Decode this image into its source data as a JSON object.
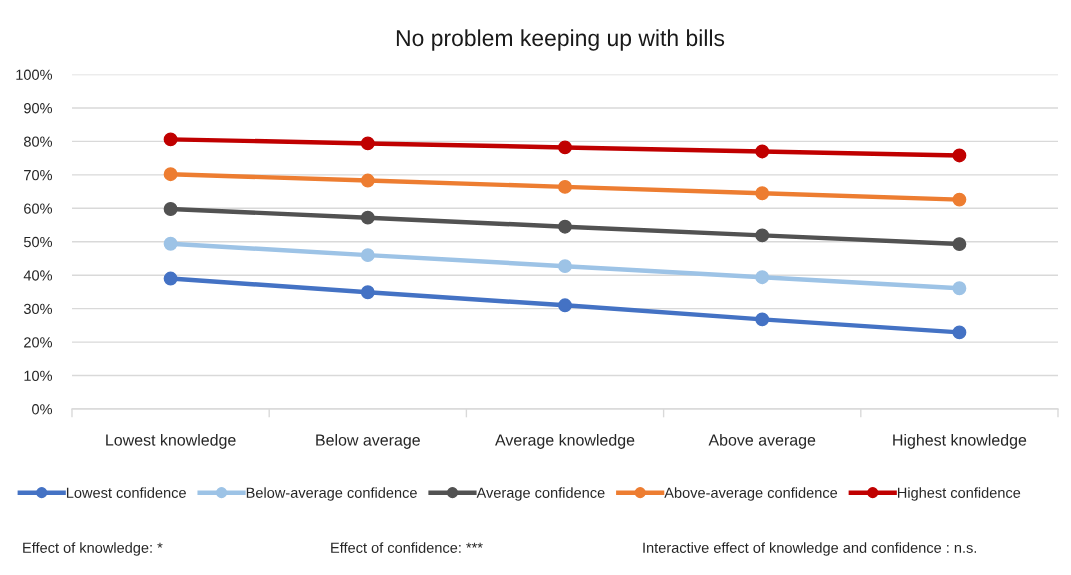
{
  "chart_data": {
    "type": "line",
    "title": "No problem keeping up with bills",
    "categories": [
      "Lowest knowledge",
      "Below average",
      "Average knowledge",
      "Above average",
      "Highest knowledge"
    ],
    "series": [
      {
        "name": "Lowest confidence",
        "color": "#4472c4",
        "values": [
          39.0,
          34.9,
          31.0,
          26.8,
          22.9
        ]
      },
      {
        "name": "Below-average confidence",
        "color": "#9dc3e6",
        "values": [
          49.4,
          46.0,
          42.7,
          39.4,
          36.1
        ]
      },
      {
        "name": "Average confidence",
        "color": "#525252",
        "values": [
          59.8,
          57.2,
          54.5,
          51.9,
          49.3
        ]
      },
      {
        "name": "Above-average confidence",
        "color": "#ed7d31",
        "values": [
          70.2,
          68.3,
          66.4,
          64.5,
          62.6
        ]
      },
      {
        "name": "Highest confidence",
        "color": "#c00000",
        "values": [
          80.6,
          79.4,
          78.2,
          77.0,
          75.8
        ]
      }
    ],
    "ylim": [
      0,
      100
    ],
    "yticks": [
      {
        "value": 0,
        "label": "0%"
      },
      {
        "value": 10,
        "label": "10%"
      },
      {
        "value": 20,
        "label": "20%"
      },
      {
        "value": 30,
        "label": "30%"
      },
      {
        "value": 40,
        "label": "40%"
      },
      {
        "value": 50,
        "label": "50%"
      },
      {
        "value": 60,
        "label": "60%"
      },
      {
        "value": 70,
        "label": "70%"
      },
      {
        "value": 80,
        "label": "80%"
      },
      {
        "value": 90,
        "label": "90%"
      },
      {
        "value": 100,
        "label": "100%"
      }
    ],
    "grid": "y",
    "legend": "bottom",
    "marker": "circle",
    "line_style": "solid",
    "annotations": [
      "Effect of knowledge: *",
      "Effect of confidence: ***",
      "Interactive effect of knowledge and confidence : n.s."
    ]
  }
}
